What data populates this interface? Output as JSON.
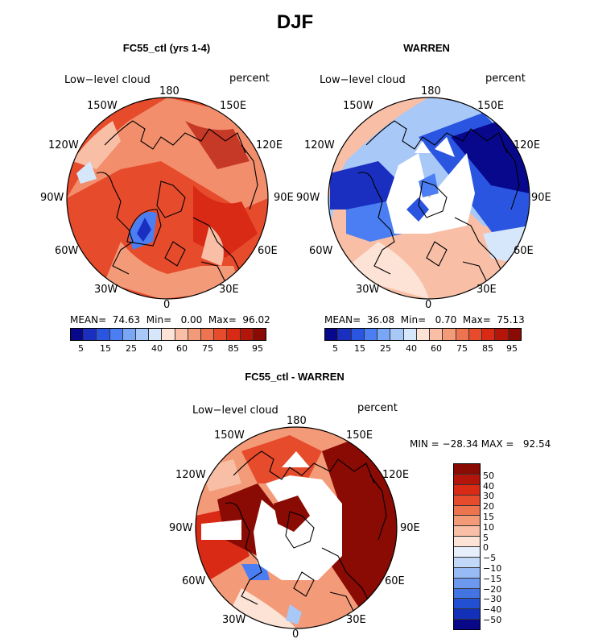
{
  "figure": {
    "title": "DJF"
  },
  "panels": {
    "left": {
      "title": "FC55_ctl (yrs 1-4)",
      "variable": "Low−level cloud",
      "units": "percent",
      "stats": "MEAN=  74.63  Min=   0.00  Max=  96.02",
      "lon_labels": [
        "180",
        "150E",
        "120E",
        "90E",
        "60E",
        "30E",
        "0",
        "30W",
        "60W",
        "90W",
        "120W",
        "150W"
      ]
    },
    "right": {
      "title": "WARREN",
      "variable": "Low−level cloud",
      "units": "percent",
      "stats": "MEAN=  36.08  Min=   0.70  Max=  75.13",
      "lon_labels": [
        "180",
        "150E",
        "120E",
        "90E",
        "60E",
        "30E",
        "0",
        "30W",
        "60W",
        "90W",
        "120W",
        "150W"
      ]
    },
    "diff": {
      "title": "FC55_ctl - WARREN",
      "variable": "Low−level cloud",
      "units": "percent",
      "stats": "MIN = −28.34 MAX =   92.54",
      "lon_labels": [
        "180",
        "150E",
        "120E",
        "90E",
        "60E",
        "30E",
        "0",
        "30W",
        "60W",
        "90W",
        "120W",
        "150W"
      ]
    }
  },
  "colorbar_top": {
    "labels": [
      "5",
      "15",
      "25",
      "40",
      "60",
      "75",
      "85",
      "95"
    ],
    "colors": [
      "#08088c",
      "#1a2fc0",
      "#2a55e0",
      "#4a7ef2",
      "#7aa6f6",
      "#a8c8f8",
      "#d6e6fb",
      "#fde3d6",
      "#f8bfa6",
      "#f39a78",
      "#ee7450",
      "#e64b2c",
      "#d82a14",
      "#b3150a",
      "#8a0a04"
    ]
  },
  "colorbar_diff": {
    "labels": [
      "50",
      "40",
      "30",
      "20",
      "15",
      "10",
      "5",
      "0",
      "−5",
      "−10",
      "−15",
      "−20",
      "−30",
      "−40",
      "−50"
    ],
    "colors": [
      "#8a0a04",
      "#b3150a",
      "#d82a14",
      "#e64b2c",
      "#ee7450",
      "#f39a78",
      "#f8bfa6",
      "#fde3d6",
      "#e6effb",
      "#c2d8f8",
      "#98baf5",
      "#6c98f0",
      "#4274e4",
      "#2350d2",
      "#1230b8",
      "#080888"
    ]
  },
  "map_colors": {
    "deep_red": "#8a0a04",
    "red": "#d82a14",
    "orange_red": "#e64b2c",
    "salmon": "#f39a78",
    "light_salmon": "#f8bfa6",
    "pale": "#fde3d6",
    "pale_blue": "#d6e6fb",
    "light_blue": "#7aa6f6",
    "blue": "#2a55e0",
    "deep_blue": "#08088c"
  }
}
